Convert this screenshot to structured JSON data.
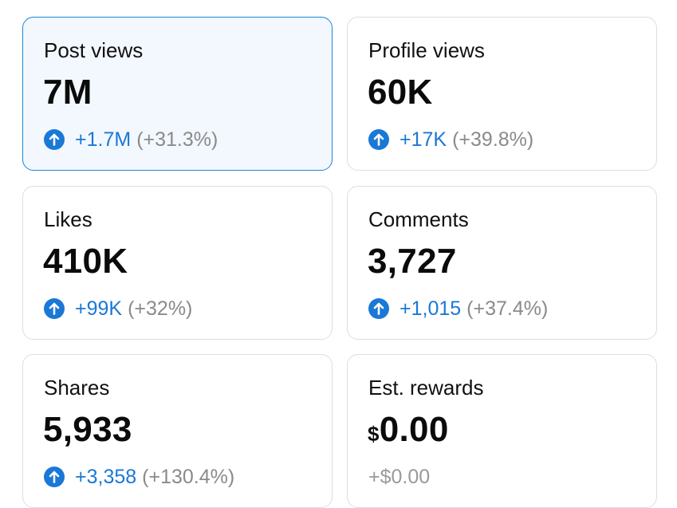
{
  "colors": {
    "accent": "#1a78d6",
    "selected_border": "#1a86d8",
    "selected_bg": "#f3f8fe",
    "card_border": "#dedede",
    "muted": "#8a8a8a"
  },
  "cards": [
    {
      "label": "Post views",
      "value": "7M",
      "delta": "+1.7M",
      "percent": "(+31.3%)",
      "icon": "arrow-up-circle-icon",
      "selected": true
    },
    {
      "label": "Profile views",
      "value": "60K",
      "delta": "+17K",
      "percent": "(+39.8%)",
      "icon": "arrow-up-circle-icon",
      "selected": false
    },
    {
      "label": "Likes",
      "value": "410K",
      "delta": "+99K",
      "percent": "(+32%)",
      "icon": "arrow-up-circle-icon",
      "selected": false
    },
    {
      "label": "Comments",
      "value": "3,727",
      "delta": "+1,015",
      "percent": "(+37.4%)",
      "icon": "arrow-up-circle-icon",
      "selected": false
    },
    {
      "label": "Shares",
      "value": "5,933",
      "delta": "+3,358",
      "percent": "(+130.4%)",
      "icon": "arrow-up-circle-icon",
      "selected": false
    },
    {
      "label": "Est. rewards",
      "currency": "$",
      "value": "0.00",
      "delta": "+$0.00",
      "selected": false
    }
  ]
}
